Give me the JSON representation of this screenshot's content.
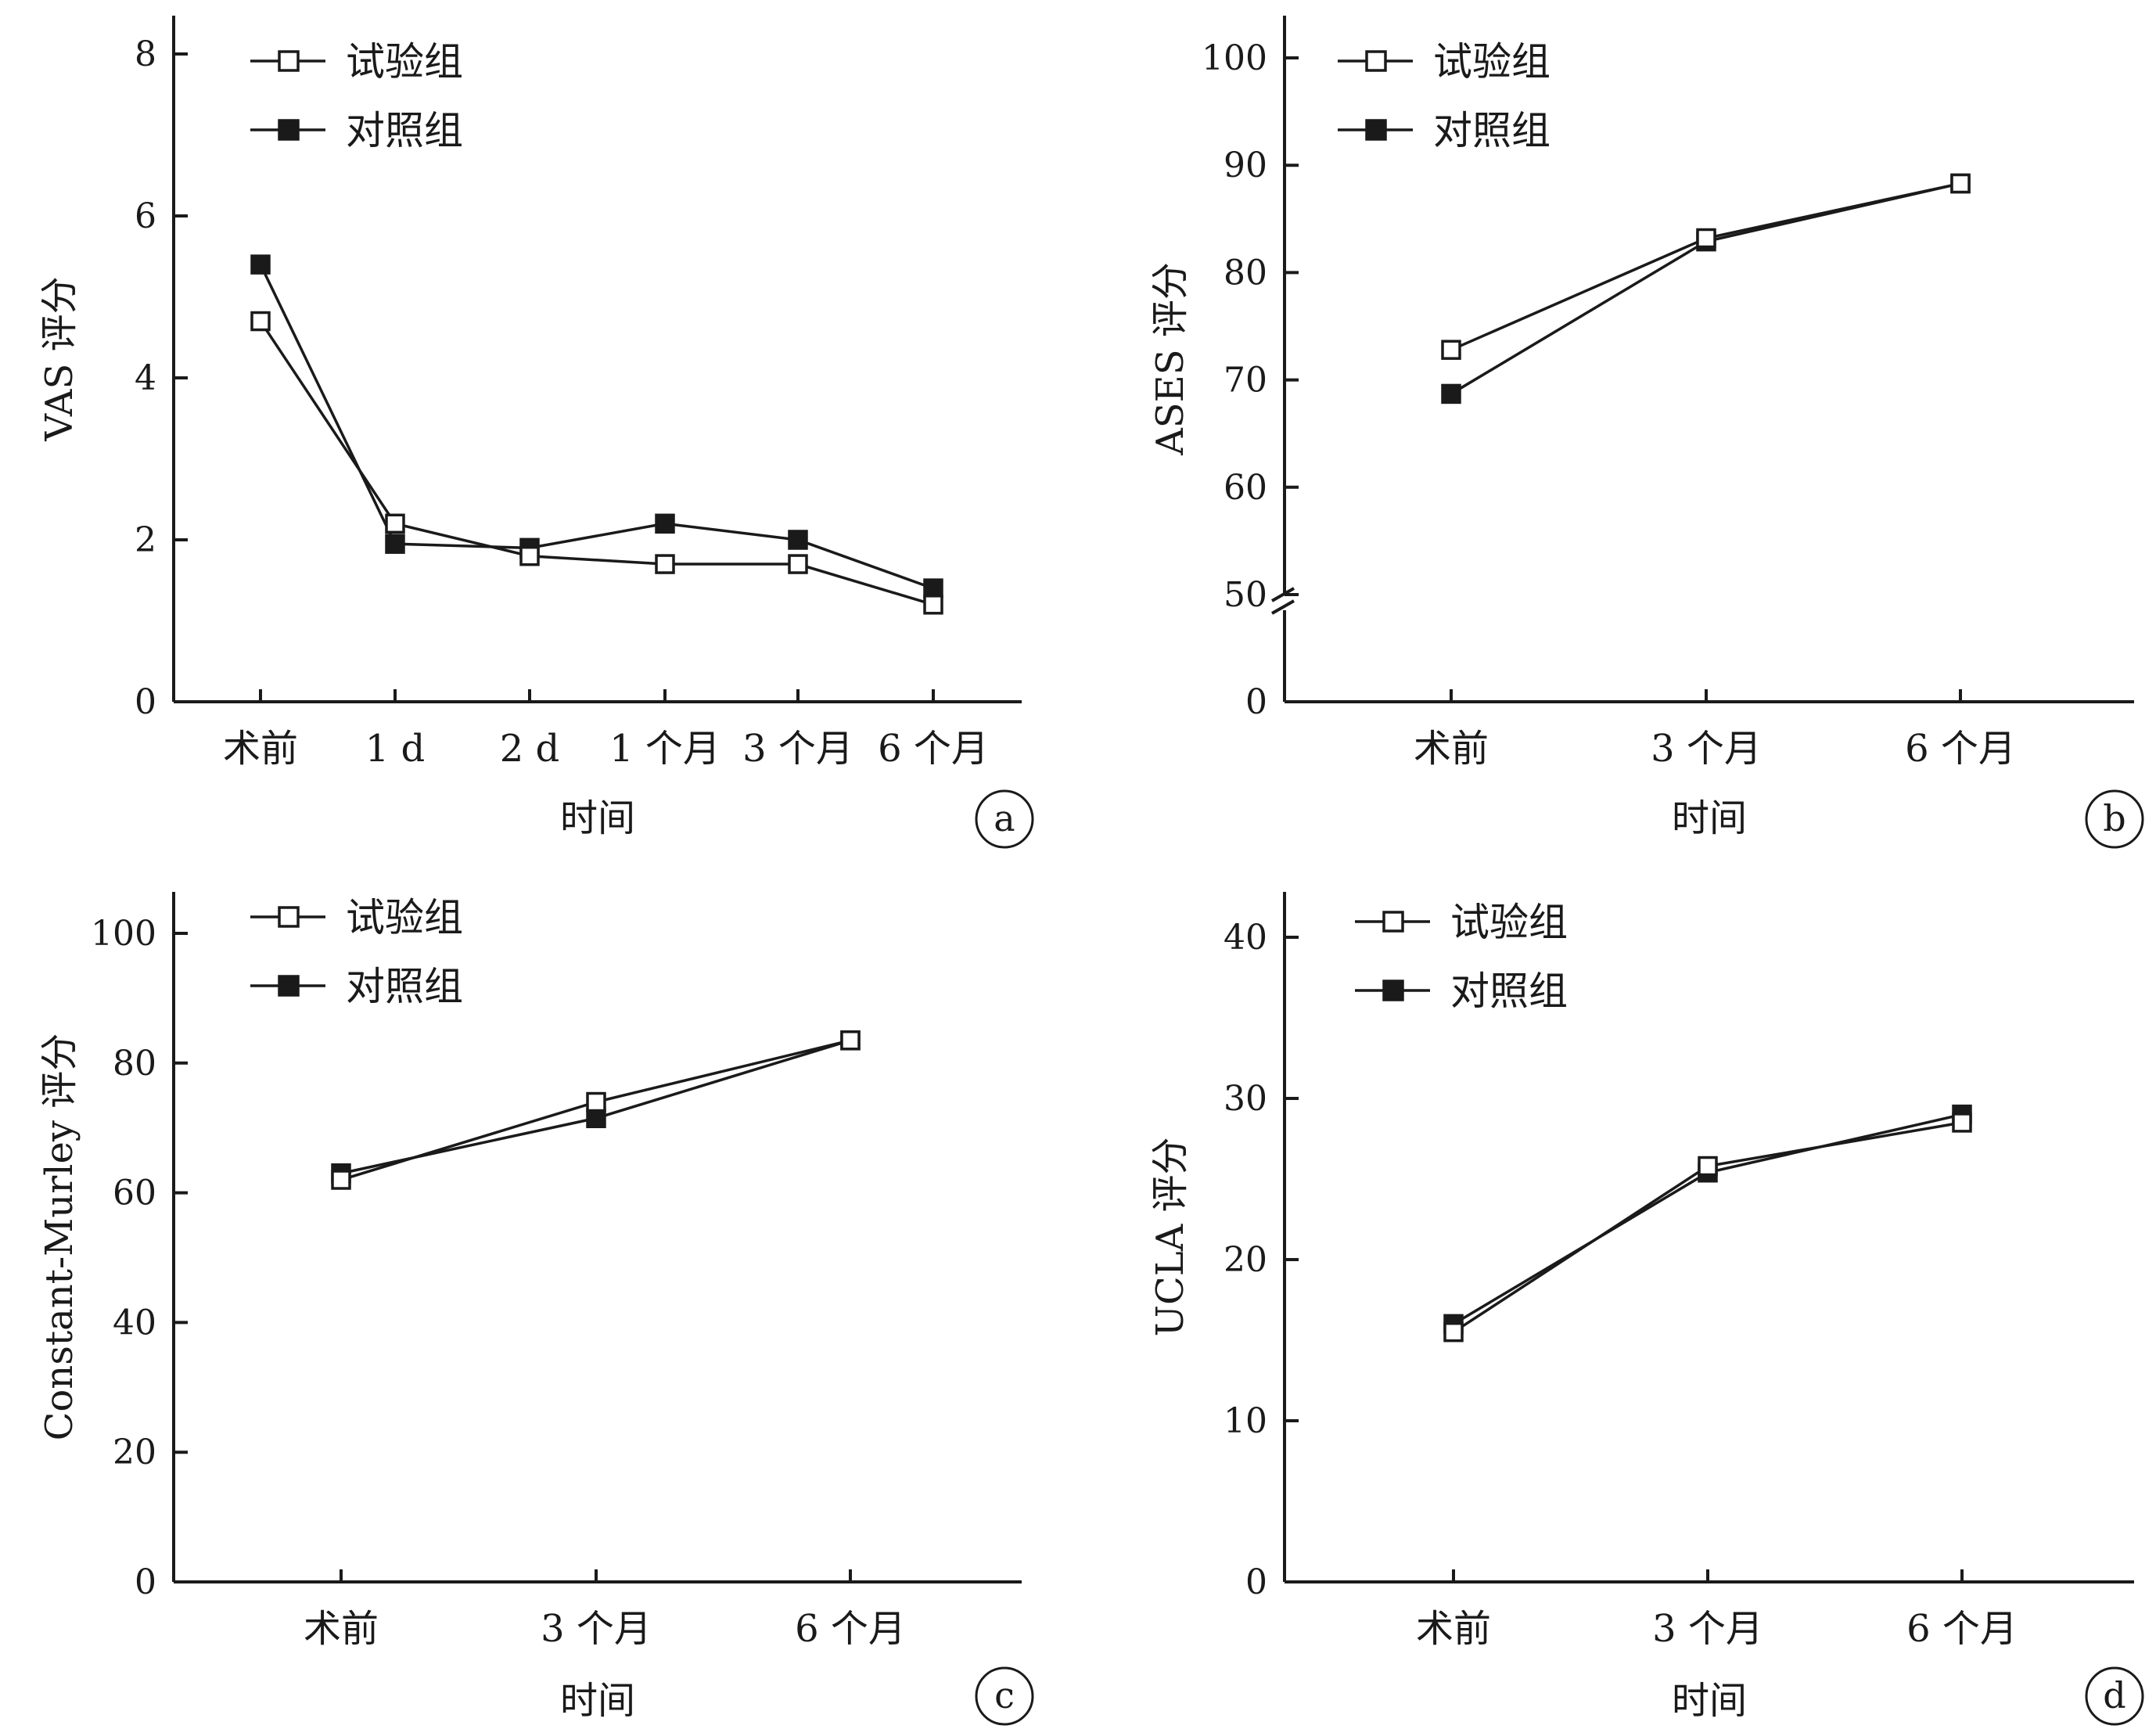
{
  "legend": {
    "series": [
      {
        "name": "试验组",
        "marker": "open-square"
      },
      {
        "name": "对照组",
        "marker": "filled-square"
      }
    ]
  },
  "chart_data": [
    {
      "panel": "a",
      "type": "line",
      "title": "",
      "xlabel": "时间",
      "ylabel": "VAS 评分",
      "categories": [
        "术前",
        "1 d",
        "2 d",
        "1 个月",
        "3 个月",
        "6 个月"
      ],
      "ylim": [
        0,
        8
      ],
      "yticks": [
        0,
        2,
        4,
        6,
        8
      ],
      "axis_break": false,
      "legend_position": "top-left",
      "series": [
        {
          "name": "试验组",
          "values": [
            4.7,
            2.2,
            1.8,
            1.7,
            1.7,
            1.2
          ]
        },
        {
          "name": "对照组",
          "values": [
            5.4,
            1.95,
            1.9,
            2.2,
            2.0,
            1.4
          ]
        }
      ]
    },
    {
      "panel": "b",
      "type": "line",
      "title": "",
      "xlabel": "时间",
      "ylabel": "ASES 评分",
      "categories": [
        "术前",
        "3 个月",
        "6 个月"
      ],
      "ylim": [
        0,
        100
      ],
      "yticks": [
        0,
        50,
        60,
        70,
        80,
        90,
        100
      ],
      "axis_break": true,
      "axis_break_between": [
        0,
        50
      ],
      "legend_position": "top-left",
      "series": [
        {
          "name": "试验组",
          "values": [
            72.8,
            83.2,
            88.3
          ]
        },
        {
          "name": "对照组",
          "values": [
            68.7,
            82.9,
            88.3
          ]
        }
      ]
    },
    {
      "panel": "c",
      "type": "line",
      "title": "",
      "xlabel": "时间",
      "ylabel": "Constant-Murley 评分",
      "categories": [
        "术前",
        "3 个月",
        "6 个月"
      ],
      "ylim": [
        0,
        100
      ],
      "yticks": [
        0,
        20,
        40,
        60,
        80,
        100
      ],
      "axis_break": false,
      "legend_position": "top-left",
      "series": [
        {
          "name": "试验组",
          "values": [
            62,
            74,
            83.5
          ]
        },
        {
          "name": "对照组",
          "values": [
            63,
            71.5,
            83.5
          ]
        }
      ]
    },
    {
      "panel": "d",
      "type": "line",
      "title": "",
      "xlabel": "时间",
      "ylabel": "UCLA 评分",
      "categories": [
        "术前",
        "3 个月",
        "6 个月"
      ],
      "ylim": [
        0,
        40
      ],
      "yticks": [
        0,
        10,
        20,
        30,
        40
      ],
      "axis_break": false,
      "legend_position": "top-left",
      "series": [
        {
          "name": "试验组",
          "values": [
            15.5,
            25.8,
            28.5
          ]
        },
        {
          "name": "对照组",
          "values": [
            16.0,
            25.4,
            29.0
          ]
        }
      ]
    }
  ]
}
